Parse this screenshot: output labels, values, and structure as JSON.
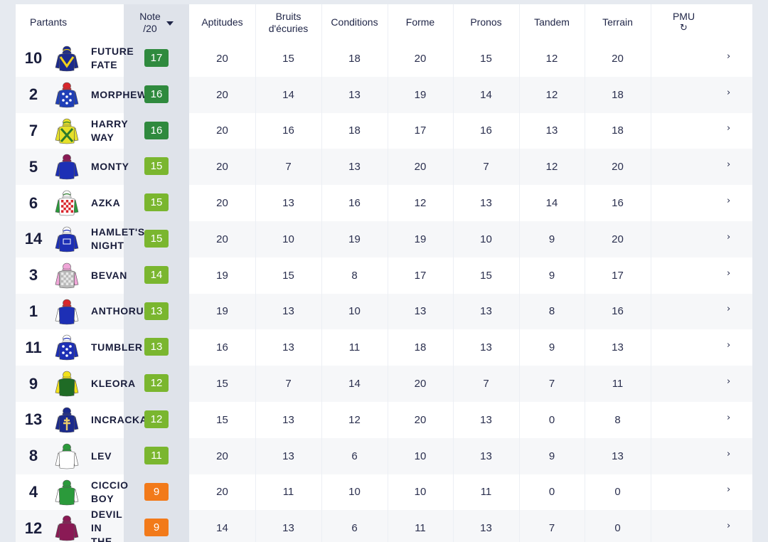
{
  "header": {
    "partants": "Partants",
    "note_line1": "Note",
    "note_line2": "/20",
    "aptitudes": "Aptitudes",
    "bruits_line1": "Bruits",
    "bruits_line2": "d'écuries",
    "conditions": "Conditions",
    "forme": "Forme",
    "pronos": "Pronos",
    "tandem": "Tandem",
    "terrain": "Terrain",
    "pmu": "PMU",
    "pmu_icon": "↻"
  },
  "colors": {
    "badge_dark_green": "#2f8a3e",
    "badge_light_green": "#7ab62f",
    "badge_orange": "#f27a1a"
  },
  "rows": [
    {
      "num": "10",
      "name": [
        "FUTURE",
        "FATE"
      ],
      "note": "17",
      "badge": "dark",
      "apt": "20",
      "bruits": "15",
      "cond": "18",
      "forme": "20",
      "pronos": "15",
      "tandem": "12",
      "terrain": "20",
      "chev": "›",
      "silk": {
        "body": "#1b2a8c",
        "pattern": "chevron",
        "accent": "#f2d21b",
        "cap": "#1b2a8c",
        "capAccent": "#f2d21b",
        "sleeves": "#1b2a8c"
      }
    },
    {
      "num": "2",
      "name": [
        "MORPHEW"
      ],
      "note": "16",
      "badge": "dark",
      "apt": "20",
      "bruits": "14",
      "cond": "13",
      "forme": "19",
      "pronos": "14",
      "tandem": "12",
      "terrain": "18",
      "chev": "›",
      "silk": {
        "body": "#1f3fb8",
        "pattern": "stars",
        "accent": "#ffffff",
        "cap": "#d9262c",
        "capAccent": "#d9262c",
        "sleeves": "#1f3fb8"
      }
    },
    {
      "num": "7",
      "name": [
        "HARRY",
        "WAY"
      ],
      "note": "16",
      "badge": "dark",
      "apt": "20",
      "bruits": "16",
      "cond": "18",
      "forme": "17",
      "pronos": "16",
      "tandem": "13",
      "terrain": "18",
      "chev": "›",
      "silk": {
        "body": "#e6e02a",
        "pattern": "cross",
        "accent": "#2b7a2b",
        "cap": "#e6e02a",
        "capAccent": "#2b7a2b",
        "sleeves": "#e6e02a"
      }
    },
    {
      "num": "5",
      "name": [
        "MONTY"
      ],
      "note": "15",
      "badge": "light",
      "apt": "20",
      "bruits": "7",
      "cond": "13",
      "forme": "20",
      "pronos": "7",
      "tandem": "12",
      "terrain": "20",
      "chev": "›",
      "silk": {
        "body": "#1d2fb5",
        "pattern": "plain",
        "accent": "#1d2fb5",
        "cap": "#8a1a55",
        "capAccent": "#8a1a55",
        "sleeves": "#1d2fb5"
      }
    },
    {
      "num": "6",
      "name": [
        "AZKA"
      ],
      "note": "15",
      "badge": "light",
      "apt": "20",
      "bruits": "13",
      "cond": "16",
      "forme": "12",
      "pronos": "13",
      "tandem": "14",
      "terrain": "16",
      "chev": "›",
      "silk": {
        "body": "#ffffff",
        "pattern": "check",
        "accent": "#d9262c",
        "cap": "#ffffff",
        "capAccent": "#2b7a2b",
        "sleeves": "#2b9a3b"
      }
    },
    {
      "num": "14",
      "name": [
        "HAMLET'S",
        "NIGHT"
      ],
      "note": "15",
      "badge": "light",
      "apt": "20",
      "bruits": "10",
      "cond": "19",
      "forme": "19",
      "pronos": "10",
      "tandem": "9",
      "terrain": "20",
      "chev": "›",
      "silk": {
        "body": "#1d2fb5",
        "pattern": "logo",
        "accent": "#ffffff",
        "cap": "#ffffff",
        "capAccent": "#1d2fb5",
        "sleeves": "#1d2fb5"
      }
    },
    {
      "num": "3",
      "name": [
        "BEVAN"
      ],
      "note": "14",
      "badge": "light",
      "apt": "19",
      "bruits": "15",
      "cond": "8",
      "forme": "17",
      "pronos": "15",
      "tandem": "9",
      "terrain": "17",
      "chev": "›",
      "silk": {
        "body": "#b9b9b9",
        "pattern": "check",
        "accent": "#e8e8e8",
        "cap": "#f0a6d8",
        "capAccent": "#f0a6d8",
        "sleeves": "#f0a6d8"
      }
    },
    {
      "num": "1",
      "name": [
        "ANTHORUS"
      ],
      "note": "13",
      "badge": "light",
      "apt": "19",
      "bruits": "13",
      "cond": "10",
      "forme": "13",
      "pronos": "13",
      "tandem": "8",
      "terrain": "16",
      "chev": "›",
      "silk": {
        "body": "#1d2fb5",
        "pattern": "plain",
        "accent": "#1d2fb5",
        "cap": "#d9262c",
        "capAccent": "#d9262c",
        "sleeves": "#ffffff"
      }
    },
    {
      "num": "11",
      "name": [
        "TUMBLER"
      ],
      "note": "13",
      "badge": "light",
      "apt": "16",
      "bruits": "13",
      "cond": "11",
      "forme": "18",
      "pronos": "13",
      "tandem": "9",
      "terrain": "13",
      "chev": "›",
      "silk": {
        "body": "#1d2fb5",
        "pattern": "stars",
        "accent": "#ffffff",
        "cap": "#ffffff",
        "capAccent": "#1d2fb5",
        "sleeves": "#1d2fb5"
      }
    },
    {
      "num": "9",
      "name": [
        "KLEORA"
      ],
      "note": "12",
      "badge": "light",
      "apt": "15",
      "bruits": "7",
      "cond": "14",
      "forme": "20",
      "pronos": "7",
      "tandem": "7",
      "terrain": "11",
      "chev": "›",
      "silk": {
        "body": "#1f6b25",
        "pattern": "plain",
        "accent": "#1f6b25",
        "cap": "#f2e21b",
        "capAccent": "#f2e21b",
        "sleeves": "#f2e21b"
      }
    },
    {
      "num": "13",
      "name": [
        "INCRACKA"
      ],
      "note": "12",
      "badge": "light",
      "apt": "15",
      "bruits": "13",
      "cond": "12",
      "forme": "20",
      "pronos": "13",
      "tandem": "0",
      "terrain": "8",
      "chev": "›",
      "silk": {
        "body": "#1b2a8c",
        "pattern": "cross-lorraine",
        "accent": "#e8c96a",
        "cap": "#1b2a8c",
        "capAccent": "#1b2a8c",
        "sleeves": "#1b2a8c"
      }
    },
    {
      "num": "8",
      "name": [
        "LEV"
      ],
      "note": "11",
      "badge": "light",
      "apt": "20",
      "bruits": "13",
      "cond": "6",
      "forme": "10",
      "pronos": "13",
      "tandem": "9",
      "terrain": "13",
      "chev": "›",
      "silk": {
        "body": "#ffffff",
        "pattern": "plain",
        "accent": "#ffffff",
        "cap": "#2b9a3b",
        "capAccent": "#2b9a3b",
        "sleeves": "#ffffff"
      }
    },
    {
      "num": "4",
      "name": [
        "CICCIO",
        "BOY"
      ],
      "note": "9",
      "badge": "orange",
      "apt": "20",
      "bruits": "11",
      "cond": "10",
      "forme": "10",
      "pronos": "11",
      "tandem": "0",
      "terrain": "0",
      "chev": "›",
      "silk": {
        "body": "#2b9a3b",
        "pattern": "plain",
        "accent": "#2b9a3b",
        "cap": "#2b9a3b",
        "capAccent": "#2b9a3b",
        "sleeves": "#ffffff"
      }
    },
    {
      "num": "12",
      "name": [
        "DEVIL",
        "IN",
        "THE"
      ],
      "note": "9",
      "badge": "orange",
      "apt": "14",
      "bruits": "13",
      "cond": "6",
      "forme": "11",
      "pronos": "13",
      "tandem": "7",
      "terrain": "0",
      "chev": "›",
      "silk": {
        "body": "#8a1a55",
        "pattern": "plain",
        "accent": "#8a1a55",
        "cap": "#8a1a55",
        "capAccent": "#8a1a55",
        "sleeves": "#8a1a55"
      }
    }
  ]
}
